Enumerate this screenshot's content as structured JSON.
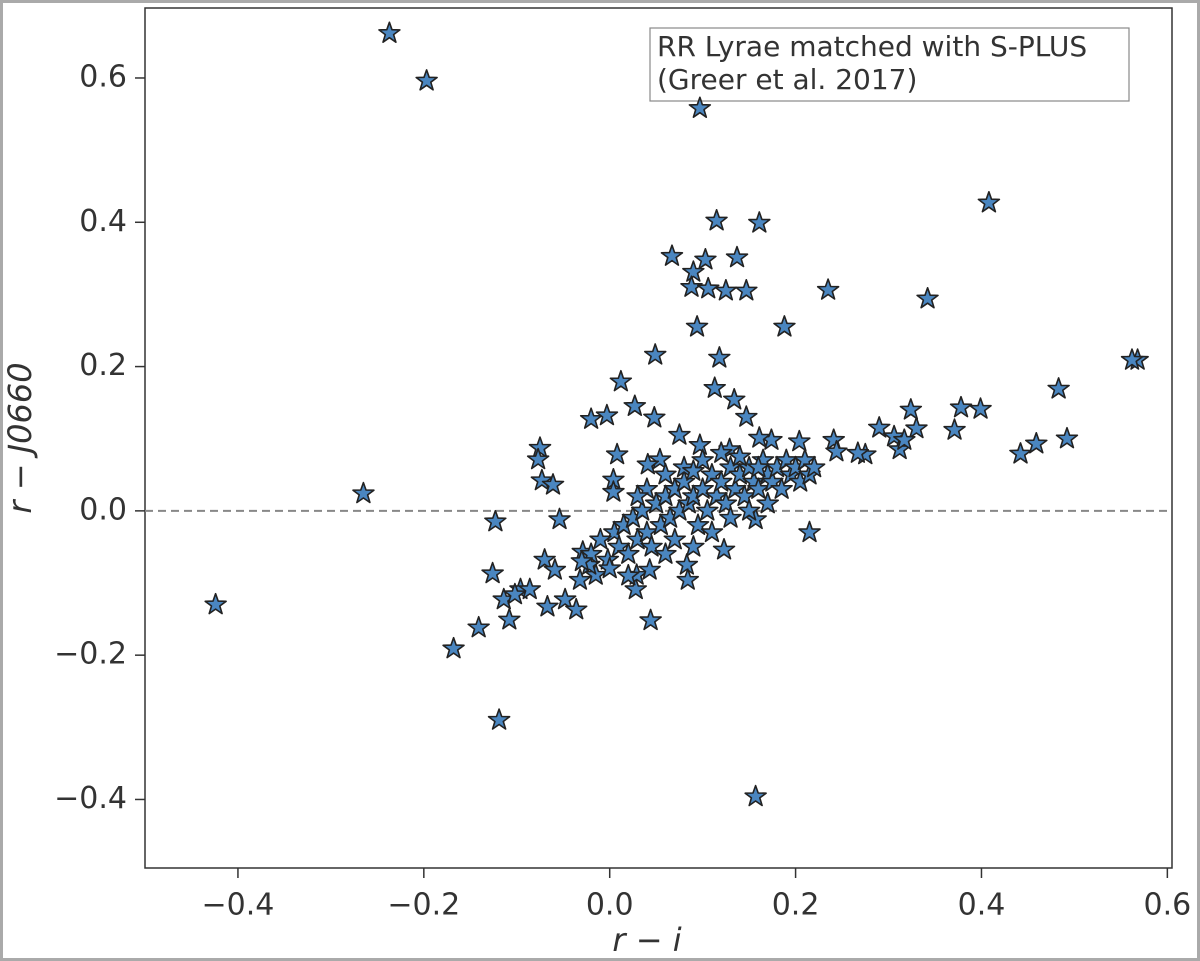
{
  "chart_data": {
    "type": "scatter",
    "xlabel": "r − i",
    "ylabel": "r − J0660",
    "annotation": [
      "RR Lyrae matched with S-PLUS",
      "(Greer et al. 2017)"
    ],
    "color": "#4a86c0",
    "hline": 0,
    "xlim": [
      -0.5,
      0.605
    ],
    "ylim": [
      -0.495,
      0.697
    ],
    "xticks": [
      {
        "value": -0.4,
        "label": "−0.4"
      },
      {
        "value": -0.2,
        "label": "−0.2"
      },
      {
        "value": 0,
        "label": "0.0"
      },
      0.2,
      0.4,
      0.6
    ],
    "yticks": [
      {
        "value": -0.4,
        "label": "−0.4"
      },
      {
        "value": -0.2,
        "label": "−0.2"
      },
      {
        "value": 0,
        "label": "0.0"
      },
      0.2,
      0.4,
      0.6
    ],
    "x": [
      -0.237,
      -0.197,
      0.097,
      0.408,
      0.115,
      0.161,
      0.067,
      0.103,
      0.137,
      0.09,
      0.088,
      0.106,
      0.125,
      0.147,
      0.235,
      0.342,
      0.094,
      0.188,
      0.049,
      0.118,
      0.568,
      0.562,
      0.012,
      0.113,
      0.483,
      -0.02,
      -0.003,
      0.027,
      0.048,
      0.134,
      0.147,
      0.075,
      0.324,
      0.378,
      0.399,
      0.371,
      0.492,
      0.459,
      0.442,
      0.33,
      0.29,
      0.275,
      0.306,
      -0.075,
      -0.077,
      -0.073,
      -0.061,
      0.008,
      0.004,
      0.004,
      -0.265,
      -0.424,
      -0.123,
      -0.054,
      0.215,
      -0.126,
      -0.07,
      -0.141,
      -0.168,
      -0.119,
      0.157,
      0.044,
      -0.114,
      -0.108,
      -0.096,
      -0.029,
      -0.015,
      -0.002,
      0.028,
      0.029,
      0.043,
      0.083,
      0.084,
      0.123,
      0.157,
      0.241,
      0.267,
      0.244,
      0.312,
      0.317,
      0.174,
      0.204,
      0.097,
      0.129,
      0.161,
      0.054,
      0.041,
      -0.048,
      -0.036,
      -0.067,
      -0.086,
      -0.102,
      -0.059,
      -0.032,
      -0.022,
      0.005,
      0.01,
      0.015,
      0.02,
      0.025,
      0.03,
      0.035,
      0.04,
      0.045,
      0.05,
      0.055,
      0.06,
      0.065,
      0.07,
      0.075,
      0.08,
      0.085,
      0.09,
      0.095,
      0.1,
      0.105,
      0.11,
      0.115,
      0.12,
      0.125,
      0.13,
      0.135,
      0.14,
      0.145,
      0.15,
      0.155,
      0.16,
      0.165,
      0.17,
      0.175,
      0.18,
      0.185,
      0.19,
      0.195,
      0.2,
      0.205,
      0.21,
      0.215,
      0.22,
      -0.01,
      -0.02,
      -0.03,
      0.0,
      0.02,
      0.06,
      0.07,
      0.09,
      0.11,
      0.13,
      0.15,
      0.17,
      0.08,
      0.1,
      0.12,
      0.14,
      0.16,
      0.04,
      0.03,
      0.06,
      0.09
    ],
    "values": [
      0.662,
      0.596,
      0.558,
      0.427,
      0.402,
      0.399,
      0.353,
      0.348,
      0.351,
      0.331,
      0.31,
      0.308,
      0.305,
      0.305,
      0.306,
      0.294,
      0.255,
      0.255,
      0.216,
      0.212,
      0.209,
      0.209,
      0.179,
      0.17,
      0.169,
      0.127,
      0.132,
      0.145,
      0.129,
      0.154,
      0.13,
      0.105,
      0.14,
      0.143,
      0.141,
      0.112,
      0.1,
      0.093,
      0.079,
      0.114,
      0.115,
      0.078,
      0.103,
      0.087,
      0.071,
      0.042,
      0.036,
      0.078,
      0.043,
      0.026,
      0.024,
      -0.13,
      -0.015,
      -0.012,
      -0.03,
      -0.087,
      -0.068,
      -0.162,
      -0.191,
      -0.29,
      -0.396,
      -0.152,
      -0.123,
      -0.151,
      -0.109,
      -0.057,
      -0.089,
      -0.068,
      -0.109,
      -0.089,
      -0.082,
      -0.075,
      -0.096,
      -0.054,
      -0.012,
      0.098,
      0.08,
      0.082,
      0.085,
      0.098,
      0.098,
      0.096,
      0.091,
      0.085,
      0.101,
      0.071,
      0.064,
      -0.123,
      -0.137,
      -0.133,
      -0.109,
      -0.116,
      -0.082,
      -0.096,
      -0.075,
      -0.03,
      -0.05,
      -0.02,
      -0.06,
      -0.01,
      -0.04,
      0.0,
      -0.03,
      -0.05,
      0.01,
      -0.02,
      0.02,
      -0.01,
      0.03,
      0.0,
      0.04,
      0.01,
      0.02,
      -0.02,
      0.03,
      0.0,
      0.05,
      0.02,
      0.04,
      0.01,
      0.06,
      0.03,
      0.05,
      0.02,
      0.06,
      0.04,
      0.03,
      0.07,
      0.05,
      0.04,
      0.06,
      0.03,
      0.07,
      0.05,
      0.06,
      0.04,
      0.07,
      0.05,
      0.06,
      -0.04,
      -0.06,
      -0.07,
      -0.08,
      -0.09,
      -0.06,
      -0.04,
      -0.05,
      -0.03,
      -0.01,
      0.0,
      0.01,
      0.06,
      0.07,
      0.08,
      0.075,
      0.06,
      0.03,
      0.02,
      0.05,
      0.055
    ]
  }
}
